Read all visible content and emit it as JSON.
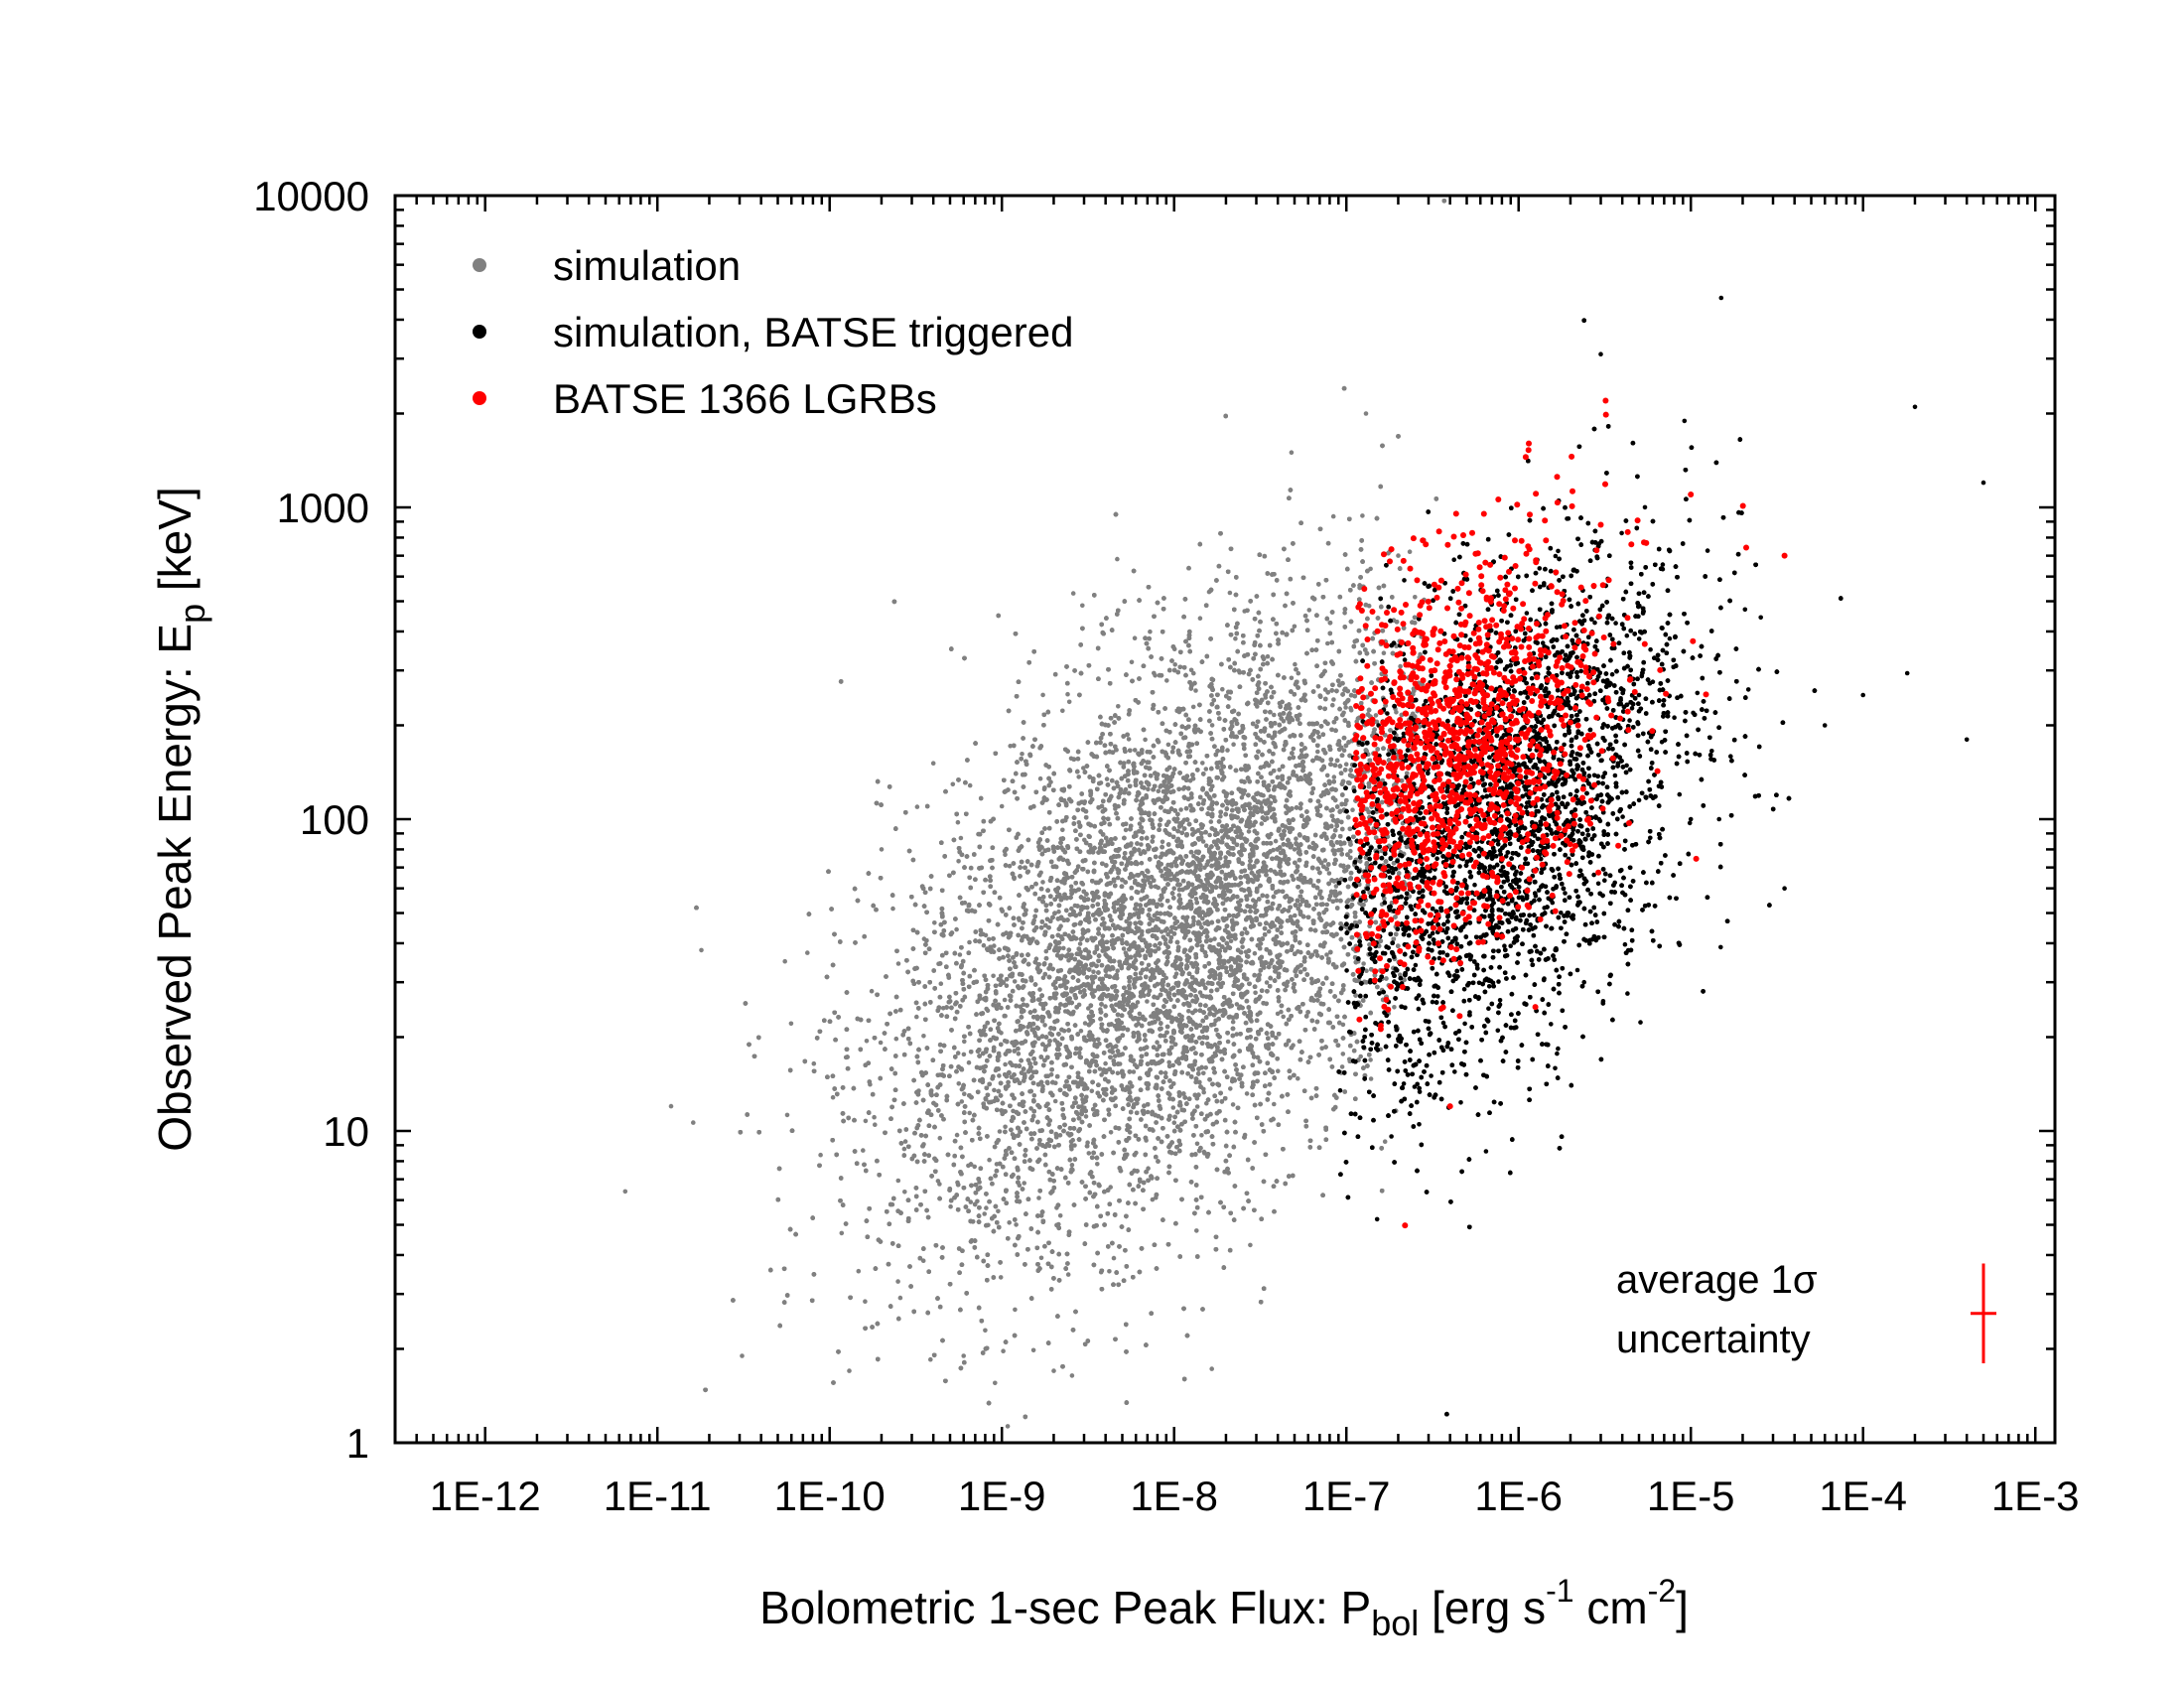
{
  "chart_data": {
    "type": "scatter",
    "xscale": "log",
    "yscale": "log",
    "xlim": [
      3e-13,
      0.0013
    ],
    "ylim": [
      1,
      10000
    ],
    "xticks": [
      {
        "value": 1e-12,
        "label": "1E-12"
      },
      {
        "value": 1e-11,
        "label": "1E-11"
      },
      {
        "value": 1e-10,
        "label": "1E-10"
      },
      {
        "value": 1e-09,
        "label": "1E-9"
      },
      {
        "value": 1e-08,
        "label": "1E-8"
      },
      {
        "value": 1e-07,
        "label": "1E-7"
      },
      {
        "value": 1e-06,
        "label": "1E-6"
      },
      {
        "value": 1e-05,
        "label": "1E-5"
      },
      {
        "value": 0.0001,
        "label": "1E-4"
      },
      {
        "value": 0.001,
        "label": "1E-3"
      }
    ],
    "yticks": [
      {
        "value": 1,
        "label": "1"
      },
      {
        "value": 10,
        "label": "10"
      },
      {
        "value": 100,
        "label": "100"
      },
      {
        "value": 1000,
        "label": "1000"
      },
      {
        "value": 10000,
        "label": "10000"
      }
    ],
    "xlabel": {
      "main": "Bolometric 1-sec Peak Flux: P",
      "sub": "bol",
      "rest1": " [erg s",
      "sup1": "-1",
      "rest2": " cm",
      "sup2": "-2",
      "rest3": "]"
    },
    "ylabel": {
      "main": "Observed Peak Energy: E",
      "sub": "p",
      "rest": " [keV]"
    },
    "legend_position": "top-left",
    "grid": false,
    "series": [
      {
        "name": "simulation",
        "color": "#808080",
        "approx_count": 20000,
        "center_log": [
          -8.0,
          1.65
        ],
        "sigma_log": [
          0.82,
          0.5
        ],
        "correlation": 0.5,
        "x": [
          6.5e-12,
          1.2e-11,
          1.8e-11,
          3.1e-11,
          5.5e-11,
          1.3e-10,
          2e-10,
          6e-10,
          1e-09,
          2e-09,
          5e-09,
          1e-08,
          2e-08,
          5e-08,
          1e-07,
          2e-07,
          1.3e-07,
          4.8e-08,
          2.6e-09
        ],
        "y": [
          6.4,
          12,
          38,
          1.9,
          35,
          1.7,
          80,
          1.9,
          110,
          1.7,
          40,
          60,
          55,
          80,
          150,
          700,
          2000,
          1500,
          530
        ]
      },
      {
        "name": "simulation, BATSE triggered",
        "color": "#000000",
        "approx_count": 8000,
        "center_log": [
          -6.1,
          2.0
        ],
        "sigma_log": [
          0.55,
          0.42
        ],
        "correlation": 0.45,
        "x": [
          2e-07,
          5e-07,
          1e-06,
          2e-06,
          5e-06,
          1.5e-05,
          3e-06,
          3.5e-05,
          0.0001,
          0.0002,
          0.0005,
          0.0004,
          1e-05,
          6e-05,
          2.4e-06
        ],
        "y": [
          100,
          200,
          150,
          120,
          250,
          4700,
          3100,
          60,
          250,
          2100,
          1200,
          180,
          100,
          200,
          30
        ]
      },
      {
        "name": "BATSE 1366 LGRBs",
        "color": "#ff0000",
        "approx_count": 1366,
        "center_log": [
          -6.4,
          2.2
        ],
        "sigma_log": [
          0.45,
          0.32
        ],
        "correlation": 0.35,
        "x": [
          2e-07,
          3e-07,
          5e-07,
          8e-07,
          1e-06,
          3.2e-06,
          1e-05,
          3.5e-05,
          4e-07
        ],
        "y": [
          200,
          150,
          120,
          250,
          180,
          2200,
          1100,
          700,
          12
        ]
      }
    ],
    "annotation": {
      "line1": "average 1σ",
      "line2": "uncertainty"
    },
    "uncertainty_marker": {
      "x": 0.0005,
      "y": 2.6,
      "x_err_log": 0.075,
      "y_err_log": 0.16,
      "color": "#ff0000"
    }
  }
}
